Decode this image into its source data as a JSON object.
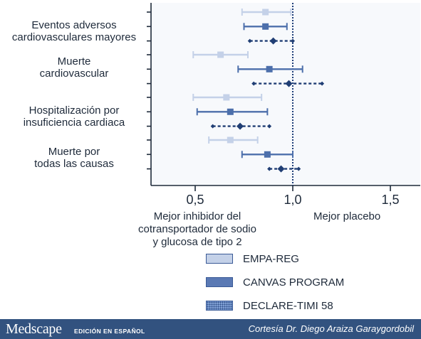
{
  "chart_data": {
    "type": "forest",
    "groups": [
      {
        "label": "Eventos adversos\ncardiovasculares mayores",
        "rows": [
          {
            "series": "EMPA-REG",
            "estimate": 0.86,
            "lower": 0.74,
            "upper": 0.99
          },
          {
            "series": "CANVAS PROGRAM",
            "estimate": 0.86,
            "lower": 0.75,
            "upper": 0.97
          },
          {
            "series": "DECLARE-TIMI 58",
            "estimate": 0.9,
            "lower": 0.78,
            "upper": 1.0
          }
        ]
      },
      {
        "label": "Muerte\ncardiovascular",
        "rows": [
          {
            "series": "EMPA-REG",
            "estimate": 0.63,
            "lower": 0.49,
            "upper": 0.77
          },
          {
            "series": "CANVAS PROGRAM",
            "estimate": 0.88,
            "lower": 0.72,
            "upper": 1.05
          },
          {
            "series": "DECLARE-TIMI 58",
            "estimate": 0.98,
            "lower": 0.8,
            "upper": 1.15
          }
        ]
      },
      {
        "label": "Hospitalización por\ninsuficiencia cardiaca",
        "rows": [
          {
            "series": "EMPA-REG",
            "estimate": 0.66,
            "lower": 0.49,
            "upper": 0.84
          },
          {
            "series": "CANVAS PROGRAM",
            "estimate": 0.68,
            "lower": 0.51,
            "upper": 0.87
          },
          {
            "series": "DECLARE-TIMI 58",
            "estimate": 0.73,
            "lower": 0.59,
            "upper": 0.88
          }
        ]
      },
      {
        "label": "Muerte por\ntodas las causas",
        "rows": [
          {
            "series": "EMPA-REG",
            "estimate": 0.68,
            "lower": 0.57,
            "upper": 0.82
          },
          {
            "series": "CANVAS PROGRAM",
            "estimate": 0.87,
            "lower": 0.74,
            "upper": 1.0
          },
          {
            "series": "DECLARE-TIMI 58",
            "estimate": 0.94,
            "lower": 0.88,
            "upper": 1.03
          }
        ]
      }
    ],
    "series": [
      {
        "name": "EMPA-REG",
        "color": "#c4d1e8",
        "style": "solid",
        "marker": "square"
      },
      {
        "name": "CANVAS PROGRAM",
        "color": "#4c6fab",
        "style": "solid",
        "marker": "square"
      },
      {
        "name": "DECLARE-TIMI 58",
        "color": "#203e74",
        "style": "dashed",
        "marker": "diamond"
      }
    ],
    "xlim": [
      0.3,
      1.65
    ],
    "xticks": [
      0.5,
      1.0,
      1.5
    ],
    "xtick_labels": [
      "0,5",
      "1,0",
      "1,5"
    ],
    "reference_line": 1.0,
    "xlabel_left": "Mejor inhibidor del\ncotransportador de sodio\ny glucosa de tipo 2",
    "xlabel_right": "Mejor placebo",
    "legend": [
      "EMPA-REG",
      "CANVAS PROGRAM",
      "DECLARE-TIMI 58"
    ],
    "legend_position": "bottom"
  },
  "footer": {
    "brand": "Medscape",
    "edition": "EDICIÓN EN ESPAÑOL",
    "credit": "Cortesía Dr. Diego Araiza Garaygordobil"
  }
}
